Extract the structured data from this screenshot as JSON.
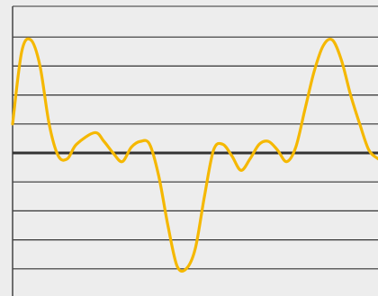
{
  "chart_data": {
    "type": "line",
    "title": "",
    "xlabel": "",
    "ylabel": "",
    "xlim": [
      0,
      20
    ],
    "ylim": [
      -5,
      5
    ],
    "gridlines_y": [
      -4,
      -3,
      -2,
      -1,
      0,
      1,
      2,
      3,
      4
    ],
    "grid": true,
    "legend": "none",
    "series": [
      {
        "color": "#f5b800",
        "points": [
          [
            0.0,
            1.0
          ],
          [
            0.5,
            3.5
          ],
          [
            1.0,
            3.9
          ],
          [
            1.5,
            3.0
          ],
          [
            2.0,
            1.0
          ],
          [
            2.5,
            -0.1
          ],
          [
            3.0,
            -0.2
          ],
          [
            3.5,
            0.3
          ],
          [
            4.5,
            0.7
          ],
          [
            5.0,
            0.4
          ],
          [
            5.5,
            0.0
          ],
          [
            6.0,
            -0.3
          ],
          [
            6.5,
            0.2
          ],
          [
            7.0,
            0.4
          ],
          [
            7.5,
            0.3
          ],
          [
            8.0,
            -0.8
          ],
          [
            8.5,
            -2.5
          ],
          [
            9.0,
            -3.9
          ],
          [
            9.5,
            -4.0
          ],
          [
            10.0,
            -3.3
          ],
          [
            10.5,
            -1.5
          ],
          [
            11.0,
            0.1
          ],
          [
            11.5,
            0.3
          ],
          [
            12.0,
            -0.1
          ],
          [
            12.5,
            -0.6
          ],
          [
            13.0,
            -0.2
          ],
          [
            13.5,
            0.3
          ],
          [
            14.0,
            0.4
          ],
          [
            14.5,
            0.1
          ],
          [
            15.0,
            -0.3
          ],
          [
            15.5,
            0.2
          ],
          [
            16.0,
            1.5
          ],
          [
            16.5,
            2.8
          ],
          [
            17.0,
            3.7
          ],
          [
            17.5,
            3.9
          ],
          [
            18.0,
            3.2
          ],
          [
            18.5,
            2.0
          ],
          [
            19.0,
            1.0
          ],
          [
            19.5,
            0.1
          ],
          [
            20.0,
            -0.2
          ]
        ]
      }
    ],
    "colors": {
      "background": "#ededed",
      "grid": "#333333",
      "zero_line": "#333333",
      "axis": "#444444",
      "line": "#f5b800"
    }
  }
}
